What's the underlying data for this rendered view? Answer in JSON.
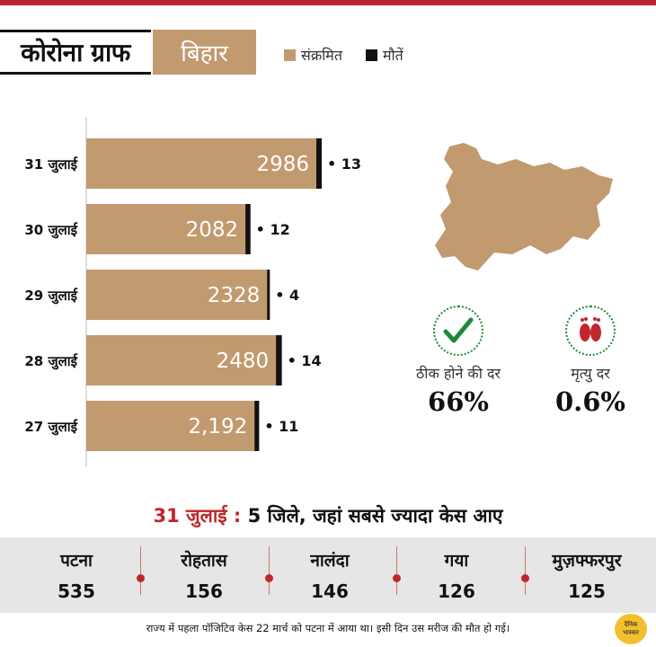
{
  "header": {
    "title": "कोरोना ग्राफ",
    "state": "बिहार",
    "legend": [
      {
        "label": "संक्रमित",
        "color": "#c29a6f"
      },
      {
        "label": "मौतें",
        "color": "#111111"
      }
    ]
  },
  "chart_data": {
    "type": "bar",
    "orientation": "horizontal",
    "categories": [
      "31 जुलाई",
      "30 जुलाई",
      "29 जुलाई",
      "28 जुलाई",
      "27 जुलाई"
    ],
    "series": [
      {
        "name": "संक्रमित",
        "values": [
          2986,
          2082,
          2328,
          2480,
          2192
        ],
        "labels": [
          "2986",
          "2082",
          "2328",
          "2480",
          "2,192"
        ],
        "color": "#c29a6f"
      },
      {
        "name": "मौतें",
        "values": [
          13,
          12,
          4,
          14,
          11
        ],
        "labels": [
          "• 13",
          "• 12",
          "• 4",
          "• 14",
          "• 11"
        ],
        "color": "#111111"
      }
    ],
    "highlight_category": "31 जुलाई",
    "highlight_color": "#c0272d"
  },
  "rates": [
    {
      "label": "ठीक होने की दर",
      "value": "66%",
      "icon": "checkmark-icon"
    },
    {
      "label": "मृत्यु दर",
      "value": "0.6%",
      "icon": "footprints-icon"
    }
  ],
  "districts": {
    "date": "31 जुलाई",
    "sep": " : ",
    "heading": "5 जिले, जहां सबसे ज्यादा केस आए",
    "items": [
      {
        "name": "पटना",
        "value": "535"
      },
      {
        "name": "रोहतास",
        "value": "156"
      },
      {
        "name": "नालंदा",
        "value": "146"
      },
      {
        "name": "गया",
        "value": "126"
      },
      {
        "name": "मुज़फ्फरपुर",
        "value": "125"
      }
    ]
  },
  "footnote": "राज्य में पहला पॉजिटिव केस 22 मार्च को पटना में आया था। इसी दिन उस मरीज की मौत हो गई।",
  "logo": {
    "line1": "दैनिक",
    "line2": "भास्कर"
  }
}
